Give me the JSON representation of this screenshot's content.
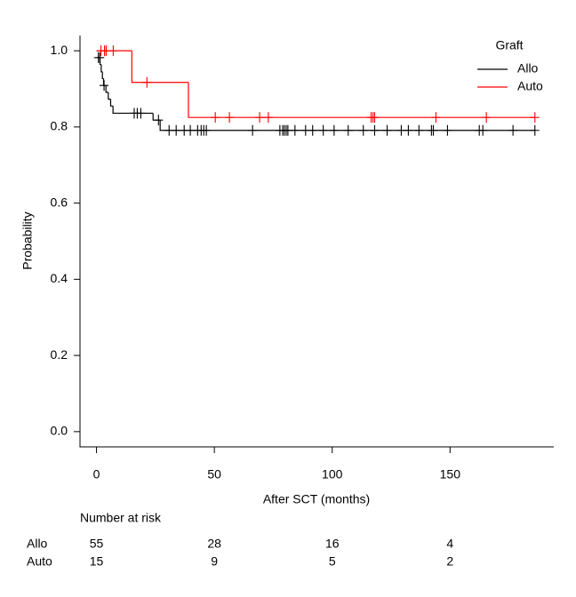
{
  "chart_data": {
    "type": "step",
    "xlabel": "After SCT (months)",
    "ylabel": "Probability",
    "xlim": [
      -7,
      194
    ],
    "ylim": [
      -0.04,
      1.04
    ],
    "xticks": [
      0,
      50,
      100,
      150
    ],
    "yticks": [
      {
        "value": 0,
        "label": "0.0"
      },
      {
        "value": 0.2,
        "label": "0.2"
      },
      {
        "value": 0.4,
        "label": "0.4"
      },
      {
        "value": 0.6,
        "label": "0.6"
      },
      {
        "value": 0.8,
        "label": "0.8"
      },
      {
        "value": 1,
        "label": "1.0"
      }
    ],
    "legend_title": "Graft",
    "legend_position": "topright",
    "series": [
      {
        "name": "Allo",
        "color": "#000000",
        "x": [
          0,
          1.5,
          2,
          2.5,
          3,
          4,
          5,
          6,
          7,
          24,
          27
        ],
        "values": [
          0.982,
          0.964,
          0.945,
          0.927,
          0.909,
          0.891,
          0.873,
          0.855,
          0.836,
          0.818,
          0.791
        ],
        "censored": [
          0.8,
          1.4,
          3.2,
          16,
          17.3,
          18.8,
          26.3,
          30.8,
          33.8,
          37.2,
          39.8,
          42.9,
          44.4,
          45.5,
          46.6,
          66.2,
          77.8,
          79,
          79.7,
          80.5,
          81.2,
          84.2,
          88.7,
          91.7,
          96.2,
          100.8,
          106.8,
          113.2,
          118,
          123.3,
          129.3,
          132.3,
          136.8,
          142.1,
          142.9,
          148.9,
          162.4,
          163.9,
          176.7,
          186
        ]
      },
      {
        "name": "Auto",
        "color": "#ff0000",
        "x": [
          0,
          15,
          39
        ],
        "values": [
          1,
          0.917,
          0.825
        ],
        "censored": [
          1.9,
          3.4,
          4.1,
          7.1,
          21.4,
          50.4,
          56.4,
          69.2,
          72.9,
          116.5,
          117.3,
          118,
          144,
          165.4,
          186
        ]
      }
    ],
    "risk_table": {
      "title": "Number at risk",
      "times": [
        0,
        50,
        100,
        150
      ],
      "rows": [
        {
          "name": "Allo",
          "values": [
            55,
            28,
            16,
            4
          ]
        },
        {
          "name": "Auto",
          "values": [
            15,
            9,
            5,
            2
          ]
        }
      ]
    }
  }
}
